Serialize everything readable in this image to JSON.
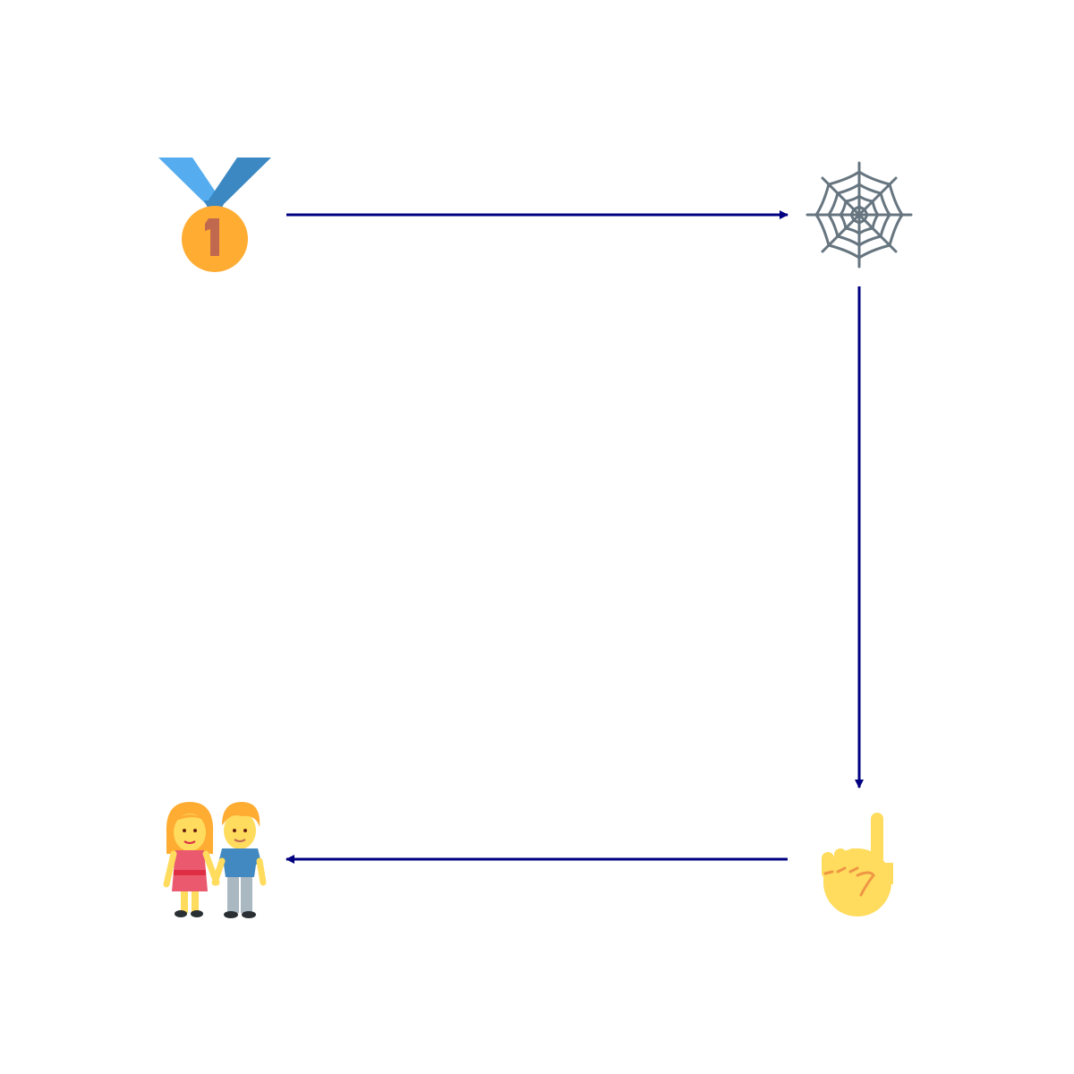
{
  "diagram": {
    "nodes": [
      {
        "id": "medal",
        "icon": "first-place-medal-icon"
      },
      {
        "id": "web",
        "icon": "spider-web-icon"
      },
      {
        "id": "finger",
        "icon": "index-pointing-up-icon"
      },
      {
        "id": "couple",
        "icon": "couple-holding-hands-icon"
      }
    ],
    "edges": [
      {
        "from": "medal",
        "to": "web"
      },
      {
        "from": "web",
        "to": "finger"
      },
      {
        "from": "finger",
        "to": "couple"
      }
    ],
    "colors": {
      "arrow": "#000080",
      "background": "#ffffff"
    }
  }
}
